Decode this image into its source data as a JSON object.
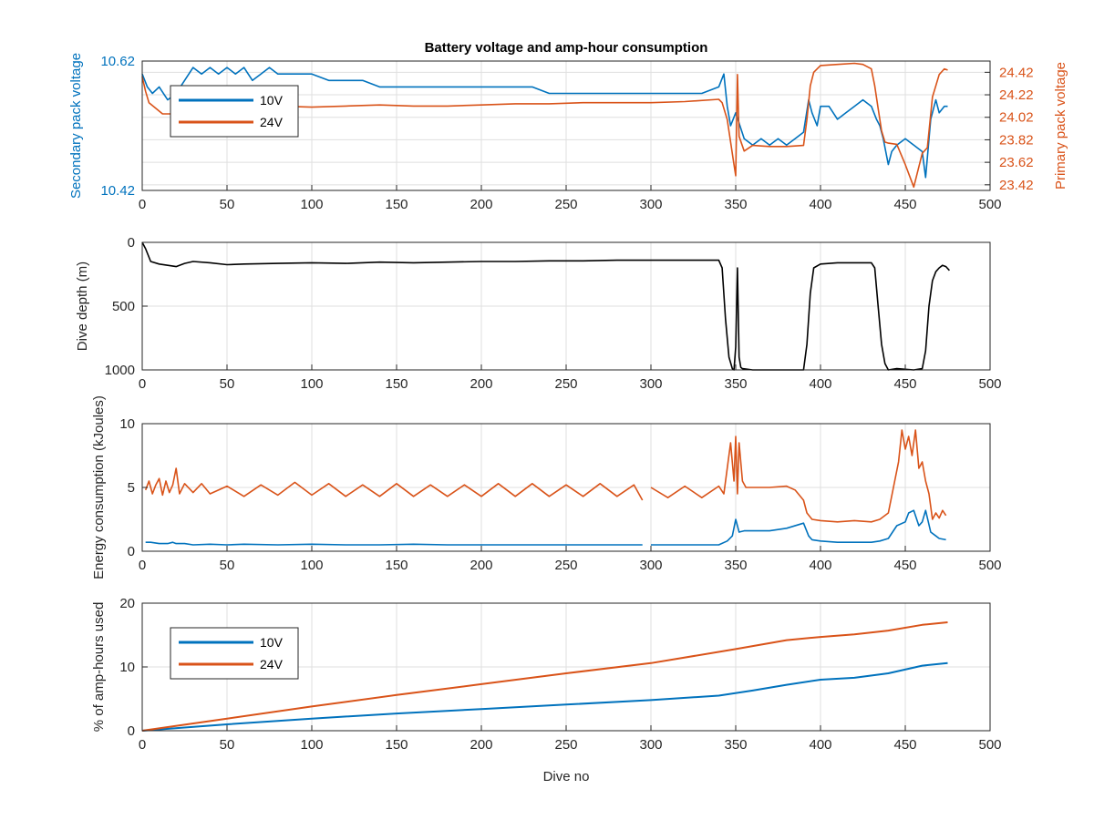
{
  "figure": {
    "title": "Battery voltage and amp-hour consumption"
  },
  "colors": {
    "blue": "#0072BD",
    "orange": "#D95319",
    "black": "#000000",
    "grid": "#dfdfdf",
    "axis": "#262626",
    "background": "#ffffff"
  },
  "chart_data": [
    {
      "type": "line",
      "title": "Battery voltage and amp-hour consumption",
      "xlabel": "",
      "ylabel": "Secondary pack voltage",
      "ylabel_right": "Primary pack voltage",
      "xlim": [
        0,
        500
      ],
      "ylim": [
        10.42,
        10.62
      ],
      "ylim_right": [
        23.37,
        24.52
      ],
      "x_ticks": [
        "0",
        "50",
        "100",
        "150",
        "200",
        "250",
        "300",
        "350",
        "400",
        "450",
        "500"
      ],
      "y_ticks": [
        "10.42",
        "10.62"
      ],
      "y_ticks_right": [
        "23.42",
        "23.62",
        "23.82",
        "24.02",
        "24.22",
        "24.42"
      ],
      "grid": true,
      "legend": "top-left",
      "series": [
        {
          "name": "10V",
          "axis": "left",
          "x": [
            0,
            3,
            6,
            10,
            15,
            20,
            25,
            30,
            35,
            40,
            45,
            50,
            55,
            60,
            65,
            70,
            75,
            80,
            90,
            100,
            110,
            120,
            130,
            140,
            150,
            160,
            170,
            180,
            190,
            200,
            210,
            220,
            230,
            240,
            250,
            260,
            270,
            280,
            290,
            300,
            310,
            320,
            330,
            340,
            343,
            345,
            347,
            350,
            355,
            360,
            365,
            370,
            375,
            380,
            385,
            390,
            393,
            395,
            398,
            400,
            405,
            410,
            415,
            420,
            425,
            430,
            433,
            435,
            437,
            440,
            442,
            445,
            450,
            455,
            460,
            462,
            465,
            468,
            470,
            473,
            475
          ],
          "y": [
            10.6,
            10.58,
            10.57,
            10.58,
            10.56,
            10.57,
            10.59,
            10.61,
            10.6,
            10.61,
            10.6,
            10.61,
            10.6,
            10.61,
            10.59,
            10.6,
            10.61,
            10.6,
            10.6,
            10.6,
            10.59,
            10.59,
            10.59,
            10.58,
            10.58,
            10.58,
            10.58,
            10.58,
            10.58,
            10.58,
            10.58,
            10.58,
            10.58,
            10.57,
            10.57,
            10.57,
            10.57,
            10.57,
            10.57,
            10.57,
            10.57,
            10.57,
            10.57,
            10.58,
            10.6,
            10.55,
            10.52,
            10.54,
            10.5,
            10.49,
            10.5,
            10.49,
            10.5,
            10.49,
            10.5,
            10.51,
            10.56,
            10.54,
            10.52,
            10.55,
            10.55,
            10.53,
            10.54,
            10.55,
            10.56,
            10.55,
            10.53,
            10.52,
            10.5,
            10.46,
            10.48,
            10.49,
            10.5,
            10.49,
            10.48,
            10.44,
            10.53,
            10.56,
            10.54,
            10.55,
            10.55
          ]
        },
        {
          "name": "24V",
          "axis": "right",
          "x": [
            0,
            2,
            4,
            8,
            12,
            18,
            20,
            25,
            30,
            40,
            50,
            60,
            80,
            100,
            120,
            140,
            160,
            180,
            200,
            220,
            240,
            260,
            280,
            300,
            320,
            340,
            342,
            345,
            347,
            349,
            350,
            351,
            352,
            355,
            360,
            370,
            380,
            390,
            392,
            394,
            396,
            400,
            410,
            420,
            425,
            430,
            432,
            434,
            436,
            438,
            440,
            445,
            450,
            455,
            460,
            463,
            466,
            470,
            473,
            475
          ],
          "y": [
            24.38,
            24.25,
            24.15,
            24.1,
            24.05,
            24.05,
            24.1,
            24.1,
            24.11,
            24.11,
            24.12,
            24.12,
            24.12,
            24.11,
            24.12,
            24.13,
            24.12,
            24.12,
            24.13,
            24.14,
            24.14,
            24.15,
            24.15,
            24.15,
            24.16,
            24.18,
            24.15,
            24.0,
            23.8,
            23.6,
            23.5,
            24.4,
            23.85,
            23.72,
            23.77,
            23.76,
            23.76,
            23.77,
            24.0,
            24.3,
            24.42,
            24.48,
            24.49,
            24.5,
            24.49,
            24.45,
            24.3,
            24.1,
            23.9,
            23.8,
            23.79,
            23.78,
            23.6,
            23.4,
            23.7,
            23.75,
            24.2,
            24.4,
            24.45,
            24.44
          ]
        }
      ]
    },
    {
      "type": "line",
      "xlabel": "",
      "ylabel": "Dive depth (m)",
      "xlim": [
        0,
        500
      ],
      "ylim": [
        0,
        1000
      ],
      "y_reversed": true,
      "x_ticks": [
        "0",
        "50",
        "100",
        "150",
        "200",
        "250",
        "300",
        "350",
        "400",
        "450",
        "500"
      ],
      "y_ticks": [
        "0",
        "500",
        "1000"
      ],
      "grid": true,
      "series": [
        {
          "x": [
            0,
            2,
            5,
            10,
            15,
            20,
            25,
            30,
            40,
            50,
            60,
            80,
            100,
            120,
            140,
            160,
            180,
            200,
            220,
            240,
            260,
            280,
            300,
            320,
            340,
            342,
            344,
            346,
            348,
            349,
            350,
            351,
            352,
            353,
            354,
            360,
            370,
            380,
            390,
            392,
            394,
            396,
            400,
            410,
            420,
            430,
            432,
            434,
            436,
            438,
            440,
            445,
            450,
            455,
            460,
            462,
            464,
            466,
            468,
            470,
            472,
            474,
            476
          ],
          "y": [
            0,
            50,
            150,
            170,
            180,
            190,
            165,
            150,
            160,
            175,
            170,
            165,
            160,
            165,
            155,
            160,
            155,
            150,
            150,
            145,
            145,
            140,
            140,
            140,
            140,
            200,
            600,
            900,
            990,
            1000,
            820,
            200,
            900,
            980,
            990,
            1000,
            1000,
            1000,
            1000,
            800,
            400,
            200,
            170,
            160,
            160,
            160,
            200,
            500,
            800,
            950,
            1000,
            990,
            995,
            1000,
            990,
            850,
            500,
            300,
            230,
            200,
            180,
            190,
            220
          ]
        }
      ]
    },
    {
      "type": "line",
      "xlabel": "",
      "ylabel": "Energy consumption (kJoules)",
      "xlim": [
        0,
        500
      ],
      "ylim": [
        0,
        10
      ],
      "x_ticks": [
        "0",
        "50",
        "100",
        "150",
        "200",
        "250",
        "300",
        "350",
        "400",
        "450",
        "500"
      ],
      "y_ticks": [
        "0",
        "5",
        "10"
      ],
      "grid": true,
      "series": [
        {
          "name": "10V",
          "x": [
            2,
            5,
            10,
            15,
            18,
            20,
            25,
            30,
            40,
            50,
            60,
            80,
            100,
            120,
            140,
            160,
            180,
            200,
            220,
            240,
            260,
            280,
            295,
            298,
            300,
            310,
            320,
            330,
            340,
            345,
            348,
            350,
            352,
            355,
            360,
            370,
            380,
            390,
            393,
            395,
            400,
            410,
            420,
            430,
            435,
            440,
            445,
            450,
            452,
            455,
            458,
            460,
            462,
            465,
            468,
            470,
            474
          ],
          "y": [
            0.7,
            0.7,
            0.6,
            0.6,
            0.7,
            0.6,
            0.6,
            0.5,
            0.55,
            0.5,
            0.55,
            0.5,
            0.55,
            0.5,
            0.5,
            0.55,
            0.5,
            0.5,
            0.5,
            0.5,
            0.5,
            0.5,
            0.5,
            null,
            0.5,
            0.5,
            0.5,
            0.5,
            0.5,
            0.8,
            1.2,
            2.5,
            1.5,
            1.6,
            1.6,
            1.6,
            1.8,
            2.2,
            1.2,
            0.9,
            0.8,
            0.7,
            0.7,
            0.7,
            0.8,
            1.0,
            2.0,
            2.3,
            3.0,
            3.2,
            2.0,
            2.3,
            3.2,
            1.5,
            1.2,
            1.0,
            0.9
          ]
        },
        {
          "name": "24V",
          "x": [
            2,
            4,
            6,
            8,
            10,
            12,
            14,
            16,
            18,
            20,
            22,
            25,
            30,
            35,
            40,
            50,
            60,
            70,
            80,
            90,
            100,
            110,
            120,
            130,
            140,
            150,
            160,
            170,
            180,
            190,
            200,
            210,
            220,
            230,
            240,
            250,
            260,
            270,
            280,
            290,
            295,
            298,
            300,
            310,
            320,
            330,
            340,
            343,
            345,
            347,
            349,
            350,
            351,
            352,
            354,
            356,
            360,
            370,
            380,
            385,
            390,
            392,
            395,
            400,
            410,
            420,
            430,
            435,
            440,
            443,
            446,
            448,
            450,
            452,
            454,
            456,
            458,
            460,
            462,
            464,
            466,
            468,
            470,
            472,
            474
          ],
          "y": [
            4.8,
            5.5,
            4.5,
            5.2,
            5.7,
            4.4,
            5.5,
            4.6,
            5.2,
            6.5,
            4.5,
            5.3,
            4.6,
            5.3,
            4.5,
            5.1,
            4.3,
            5.2,
            4.4,
            5.4,
            4.4,
            5.3,
            4.3,
            5.2,
            4.3,
            5.3,
            4.3,
            5.2,
            4.3,
            5.2,
            4.3,
            5.3,
            4.3,
            5.3,
            4.3,
            5.2,
            4.3,
            5.3,
            4.3,
            5.2,
            4.0,
            null,
            5.0,
            4.2,
            5.1,
            4.2,
            5.1,
            4.5,
            6.5,
            8.5,
            5.5,
            9.0,
            4.5,
            8.5,
            5.5,
            5.0,
            5.0,
            5.0,
            5.1,
            4.8,
            4.0,
            3.0,
            2.5,
            2.4,
            2.3,
            2.4,
            2.3,
            2.5,
            3.0,
            5.0,
            7.0,
            9.5,
            8.0,
            9.0,
            7.5,
            9.5,
            6.5,
            7.0,
            5.5,
            4.5,
            2.5,
            3.0,
            2.6,
            3.2,
            2.8
          ]
        }
      ]
    },
    {
      "type": "line",
      "xlabel": "Dive no",
      "ylabel": "% of amp-hours used",
      "xlim": [
        0,
        500
      ],
      "ylim": [
        0,
        20
      ],
      "x_ticks": [
        "0",
        "50",
        "100",
        "150",
        "200",
        "250",
        "300",
        "350",
        "400",
        "450",
        "500"
      ],
      "y_ticks": [
        "0",
        "10",
        "20"
      ],
      "grid": true,
      "legend": "top-left",
      "series": [
        {
          "name": "10V",
          "x": [
            0,
            50,
            100,
            150,
            200,
            250,
            300,
            340,
            360,
            380,
            400,
            420,
            440,
            460,
            475
          ],
          "y": [
            0,
            1.0,
            1.9,
            2.7,
            3.4,
            4.1,
            4.8,
            5.5,
            6.3,
            7.2,
            8.0,
            8.3,
            9.0,
            10.2,
            10.6
          ]
        },
        {
          "name": "24V",
          "x": [
            0,
            50,
            100,
            150,
            200,
            250,
            300,
            350,
            380,
            400,
            420,
            440,
            460,
            475
          ],
          "y": [
            0,
            1.9,
            3.8,
            5.6,
            7.3,
            9.0,
            10.6,
            12.8,
            14.2,
            14.7,
            15.1,
            15.7,
            16.6,
            17.0
          ]
        }
      ]
    }
  ]
}
